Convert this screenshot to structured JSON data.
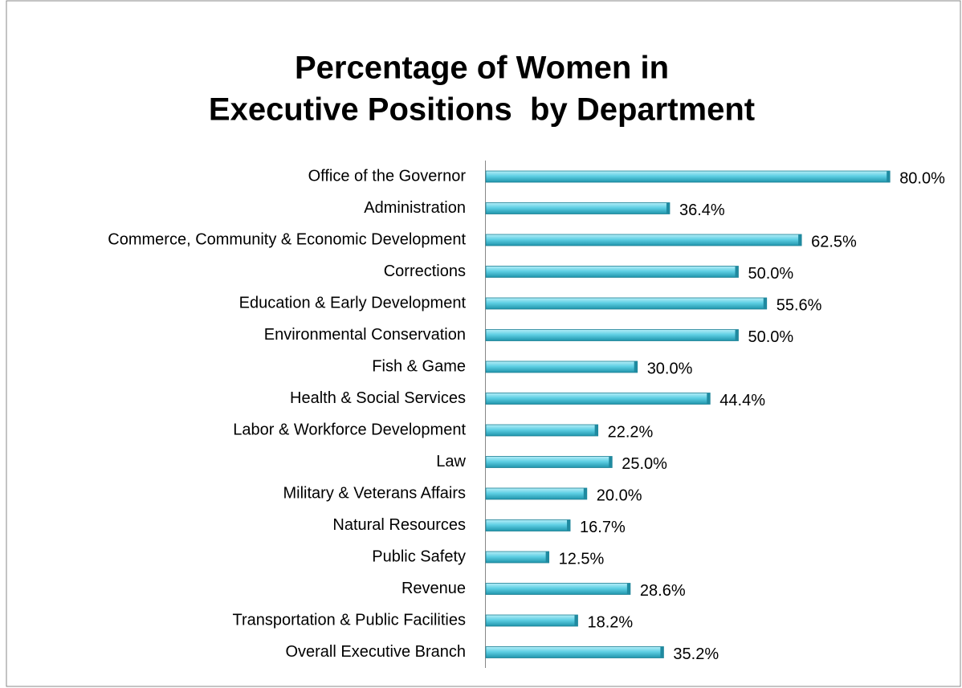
{
  "chart_data": {
    "type": "bar",
    "orientation": "horizontal",
    "title": [
      "Percentage of Women in",
      "Executive Positions  by Department"
    ],
    "categories": [
      "Office of the Governor",
      "Administration",
      "Commerce, Community & Economic Development",
      "Corrections",
      "Education & Early Development",
      "Environmental Conservation",
      "Fish & Game",
      "Health & Social Services",
      "Labor & Workforce Development",
      "Law",
      "Military & Veterans Affairs",
      "Natural Resources",
      "Public Safety",
      "Revenue",
      "Transportation & Public Facilities",
      "Overall Executive Branch"
    ],
    "values": [
      80.0,
      36.4,
      62.5,
      50.0,
      55.6,
      50.0,
      30.0,
      44.4,
      22.2,
      25.0,
      20.0,
      16.7,
      12.5,
      28.6,
      18.2,
      35.2
    ],
    "value_labels": [
      "80.0%",
      "36.4%",
      "62.5%",
      "50.0%",
      "55.6%",
      "50.0%",
      "30.0%",
      "44.4%",
      "22.2%",
      "25.0%",
      "20.0%",
      "16.7%",
      "12.5%",
      "28.6%",
      "18.2%",
      "35.2%"
    ],
    "color": "#4cc3d9"
  }
}
